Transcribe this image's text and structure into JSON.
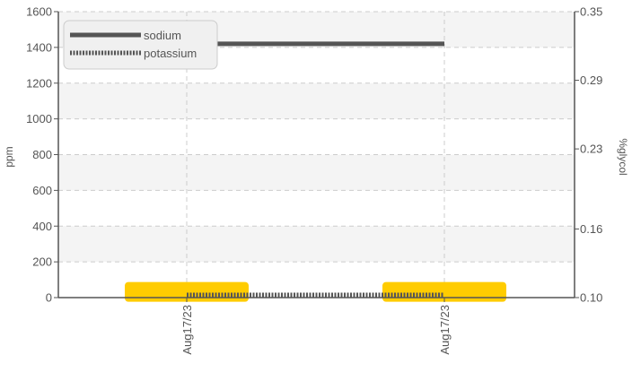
{
  "chart_data": {
    "type": "line",
    "title": "",
    "x_tick_labels": [
      "Aug17/23",
      "Aug17/23"
    ],
    "y_left": {
      "label": "ppm",
      "ticks": [
        0,
        200,
        400,
        600,
        800,
        1000,
        1200,
        1400,
        1600
      ],
      "range": [
        0,
        1600
      ]
    },
    "y_right": {
      "label": "%glycol",
      "ticks": [
        "0.10",
        "0.16",
        "0.23",
        "0.29",
        "0.35"
      ],
      "range": [
        0.1,
        0.35
      ]
    },
    "grid": true,
    "legend": {
      "placement": "top-left"
    },
    "series": [
      {
        "name": "sodium",
        "axis": "left",
        "style": "solid",
        "color": "#555555",
        "points": [
          {
            "x": "Aug17/23",
            "y": 1420
          },
          {
            "x": "Aug17/23",
            "y": 1420
          }
        ]
      },
      {
        "name": "potassium",
        "axis": "left",
        "style": "dotted",
        "color": "#555555",
        "points": [
          {
            "x": "Aug17/23",
            "y": 15
          },
          {
            "x": "Aug17/23",
            "y": 15
          }
        ]
      },
      {
        "name": "",
        "axis": "right",
        "style": "bar",
        "color": "#ffcc00",
        "points": [
          {
            "x": "Aug17/23",
            "y": 0.105
          },
          {
            "x": "Aug17/23",
            "y": 0.105
          }
        ]
      }
    ]
  }
}
